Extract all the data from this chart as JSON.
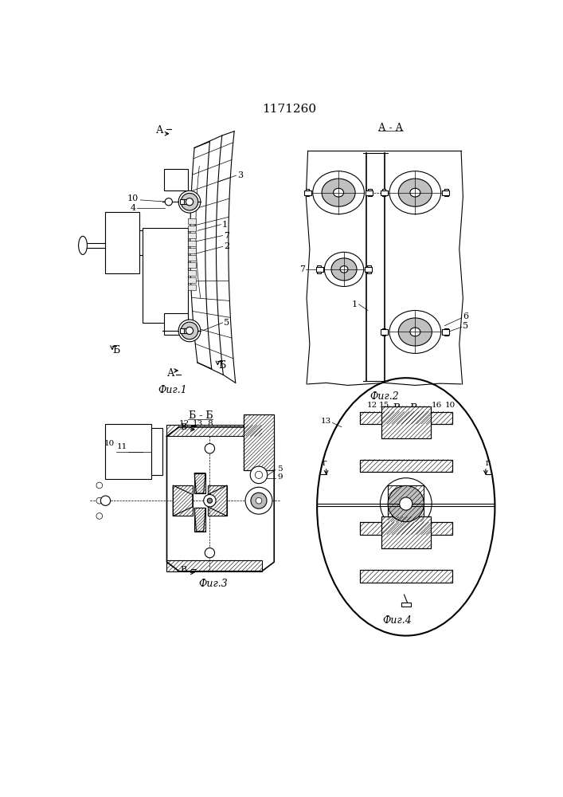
{
  "title": "1171260",
  "bg_color": "#ffffff",
  "fig1_label": "Фиг.1",
  "fig2_label": "Фиг.2",
  "fig3_label": "Фиг.3",
  "fig4_label": "Фиг.4"
}
